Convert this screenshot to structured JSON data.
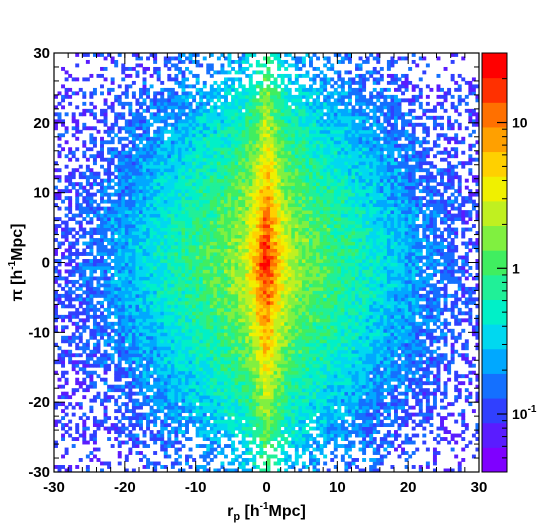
{
  "chart_data": {
    "type": "heatmap",
    "title": "",
    "xlabel": "r_p [h^-1Mpc]",
    "ylabel": "π [h^-1Mpc]",
    "xlabel_parts": {
      "main": "r",
      "sub": "p",
      "open": " [h",
      "sup": "-1",
      "close": "Mpc]"
    },
    "ylabel_parts": {
      "main": "π",
      "open": " [h",
      "sup": "-1",
      "close": "Mpc]"
    },
    "xlim": [
      -30,
      30
    ],
    "ylim": [
      -30,
      30
    ],
    "x_ticks": [
      "-30",
      "-20",
      "-10",
      "0",
      "10",
      "20",
      "30"
    ],
    "y_ticks": [
      "-30",
      "-20",
      "-10",
      "0",
      "10",
      "20",
      "30"
    ],
    "x_tick_values": [
      -30,
      -20,
      -10,
      0,
      10,
      20,
      30
    ],
    "y_tick_values": [
      -30,
      -20,
      -10,
      0,
      10,
      20,
      30
    ],
    "colorbar": {
      "scale": "log",
      "range": [
        0.04,
        30
      ],
      "ticks": [
        {
          "value": 10,
          "label": "10",
          "base": "10",
          "exp": ""
        },
        {
          "value": 1,
          "label": "1",
          "base": "1",
          "exp": ""
        },
        {
          "value": 0.1,
          "label": "10^-1",
          "base": "10",
          "exp": "-1"
        }
      ],
      "palette": [
        "#7f00ff",
        "#5a1cff",
        "#3040ff",
        "#1470ff",
        "#00a8ff",
        "#00d8f0",
        "#00f0c8",
        "#20f098",
        "#40ee60",
        "#80f040",
        "#c0f020",
        "#f0f000",
        "#ffd000",
        "#ffa000",
        "#ff7000",
        "#ff3000",
        "#ff0000"
      ]
    },
    "bins_per_axis": 120,
    "peak_value": 25,
    "distribution": "Density peaks at origin (~25), elongated along π (line of sight) near r_p = 0, diamond-shaped falloff; noisy purple/white fringe beyond |r_p|≈20 and |π|≈25"
  }
}
